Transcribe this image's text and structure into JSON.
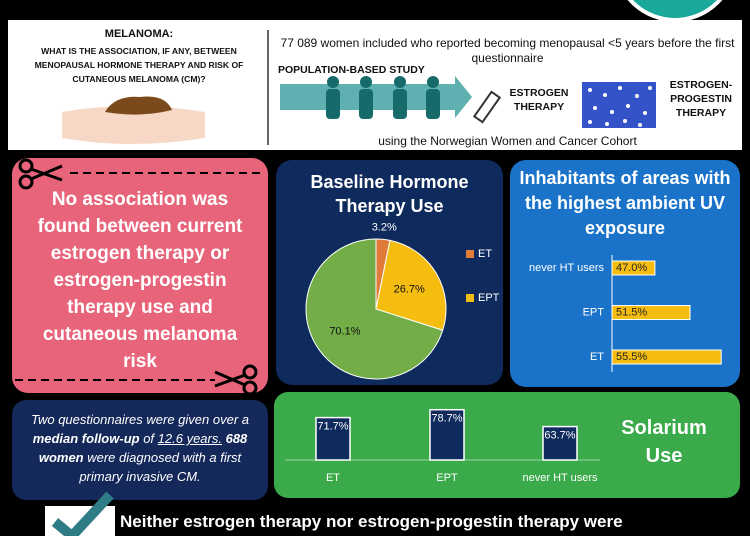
{
  "header": {
    "title": "MELANOMA:",
    "question": "WHAT IS THE ASSOCIATION, IF ANY, BETWEEN MENOPAUSAL HORMONE THERAPY AND RISK OF CUTANEOUS MELANOMA (CM)?",
    "study_size": "77 089 women included who reported becoming menopausal <5 years before the first questionnaire",
    "study_type": "POPULATION-BASED STUDY",
    "therapy_1": "ESTROGEN THERAPY",
    "therapy_2": "ESTROGEN-PROGESTIN THERAPY",
    "cohort": "using the Norwegian Women and Cancer Cohort"
  },
  "finding": "No association was found between current estrogen therapy or estrogen-progestin therapy use and cutaneous melanoma risk",
  "follow_up": [
    {
      "text": "Two questionnaires were given over a "
    },
    {
      "text": "median follow-up",
      "bold": true
    },
    {
      "text": " of "
    },
    {
      "text": "12.6 years.",
      "underline": true
    },
    {
      "text": " 688 women",
      "bold": true
    },
    {
      "text": " were diagnosed with a first primary invasive CM."
    }
  ],
  "conclusion": "Neither estrogen therapy nor estrogen-progestin therapy were",
  "chart_data": [
    {
      "type": "pie",
      "title": "Baseline Hormone Therapy Use",
      "categories": [
        "ET",
        "EPT",
        null
      ],
      "values": [
        3.2,
        26.7,
        70.1
      ],
      "value_labels": [
        "3.2%",
        "26.7%",
        "70.1%"
      ],
      "colors": [
        "#e07b39",
        "#f5bd10",
        "#72ad47"
      ],
      "legend": "right"
    },
    {
      "type": "hbar",
      "title": "Inhabitants of areas with the highest ambient UV exposure",
      "categories": [
        "never HT users",
        "EPT",
        "ET"
      ],
      "values": [
        47.0,
        51.5,
        55.5
      ],
      "value_labels": [
        "47.0%",
        "51.5%",
        "55.5%"
      ],
      "color": "#f5bd10",
      "xlim": [
        41.5,
        57
      ]
    },
    {
      "type": "vbar",
      "title": "Solarium Use",
      "categories": [
        "ET",
        "EPT",
        "never HT users"
      ],
      "values": [
        71.7,
        78.7,
        63.7
      ],
      "value_labels": [
        "71.7%",
        "78.7%",
        "63.7%"
      ],
      "color": "#0f2a5c",
      "ylim": [
        34,
        90
      ]
    }
  ]
}
